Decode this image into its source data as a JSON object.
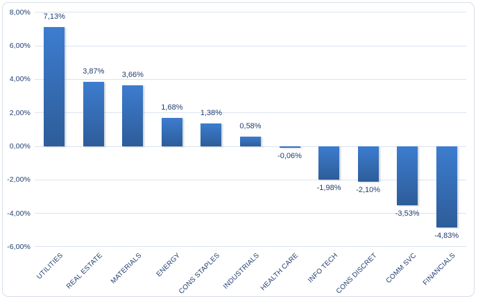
{
  "chart_data": {
    "type": "bar",
    "title": "",
    "xlabel": "",
    "ylabel": "",
    "grid": true,
    "legend_position": "none",
    "decimal_separator": ",",
    "categories": [
      "UTILITIES",
      "REAL ESTATE",
      "MATERIALS",
      "ENERGY",
      "CONS STAPLES",
      "INDUSTRIALS",
      "HEALTH CARE",
      "INFO TECH",
      "CONS DISCRET",
      "COMM SVC",
      "FINANCIALS"
    ],
    "values": [
      7.13,
      3.87,
      3.66,
      1.68,
      1.38,
      0.58,
      -0.06,
      -1.98,
      -2.1,
      -3.53,
      -4.83
    ],
    "value_labels": [
      "7,13%",
      "3,87%",
      "3,66%",
      "1,68%",
      "1,38%",
      "0,58%",
      "-0,06%",
      "-1,98%",
      "-2,10%",
      "-3,53%",
      "-4,83%"
    ],
    "y_axis": {
      "ylim": [
        -6,
        8
      ],
      "tick_step": 2,
      "ticks": [
        8,
        6,
        4,
        2,
        0,
        -2,
        -4,
        -6
      ],
      "tick_labels": [
        "8,00%",
        "6,00%",
        "4,00%",
        "2,00%",
        "0,00%",
        "-2,00%",
        "-4,00%",
        "-6,00%"
      ]
    },
    "colors": {
      "bar_gradient_top": "#3d7ccf",
      "bar_gradient_bottom": "#2d5d99",
      "gridline": "#dae3f1",
      "text": "#1f3c6e",
      "frame_border": "#d7dde8",
      "background": "#ffffff"
    }
  }
}
